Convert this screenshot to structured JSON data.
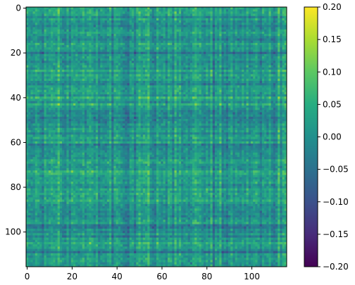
{
  "chart_data": {
    "type": "heatmap",
    "title": "",
    "xlabel": "",
    "ylabel": "",
    "matrix_size": 116,
    "xlim": [
      0,
      116
    ],
    "ylim": [
      116,
      0
    ],
    "x_ticks": [
      0,
      20,
      40,
      60,
      80,
      100
    ],
    "y_ticks": [
      0,
      20,
      40,
      60,
      80,
      100
    ],
    "colorbar": {
      "colormap": "viridis",
      "vmin": -0.2,
      "vmax": 0.2,
      "ticks": [
        0.2,
        0.15,
        0.1,
        0.05,
        0.0,
        -0.05,
        -0.1,
        -0.15,
        -0.2
      ],
      "tick_labels": [
        "0.20",
        "0.15",
        "0.10",
        "0.05",
        "0.00",
        "−0.05",
        "−0.10",
        "−0.15",
        "−0.20"
      ]
    },
    "value_distribution": {
      "center": 0.0,
      "typical_range": [
        -0.1,
        0.1
      ],
      "notes_visible": "mostly teal/green values near 0 with scattered darker blue and lighter green cells"
    }
  },
  "colors": {
    "frame": "#000000",
    "background": "#ffffff"
  }
}
